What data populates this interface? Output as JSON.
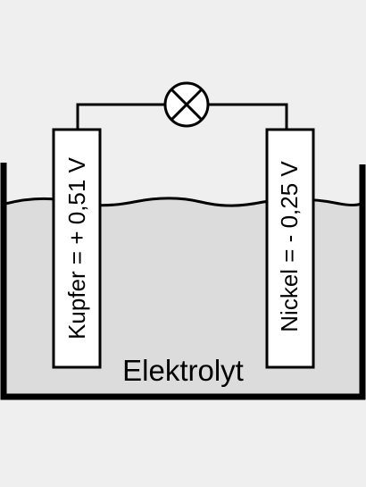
{
  "diagram": {
    "electrodes": {
      "left": {
        "label": "Kupfer = + 0,51 V"
      },
      "right": {
        "label": "Nickel = - 0,25 V"
      }
    },
    "electrolyte": {
      "label": "Elektrolyt"
    },
    "lamp": {
      "icon": "lamp-icon"
    },
    "colors": {
      "background": "#efefef",
      "electrolyte": "#dcdcdc",
      "electrode": "#ffffff",
      "stroke": "#000000"
    }
  }
}
